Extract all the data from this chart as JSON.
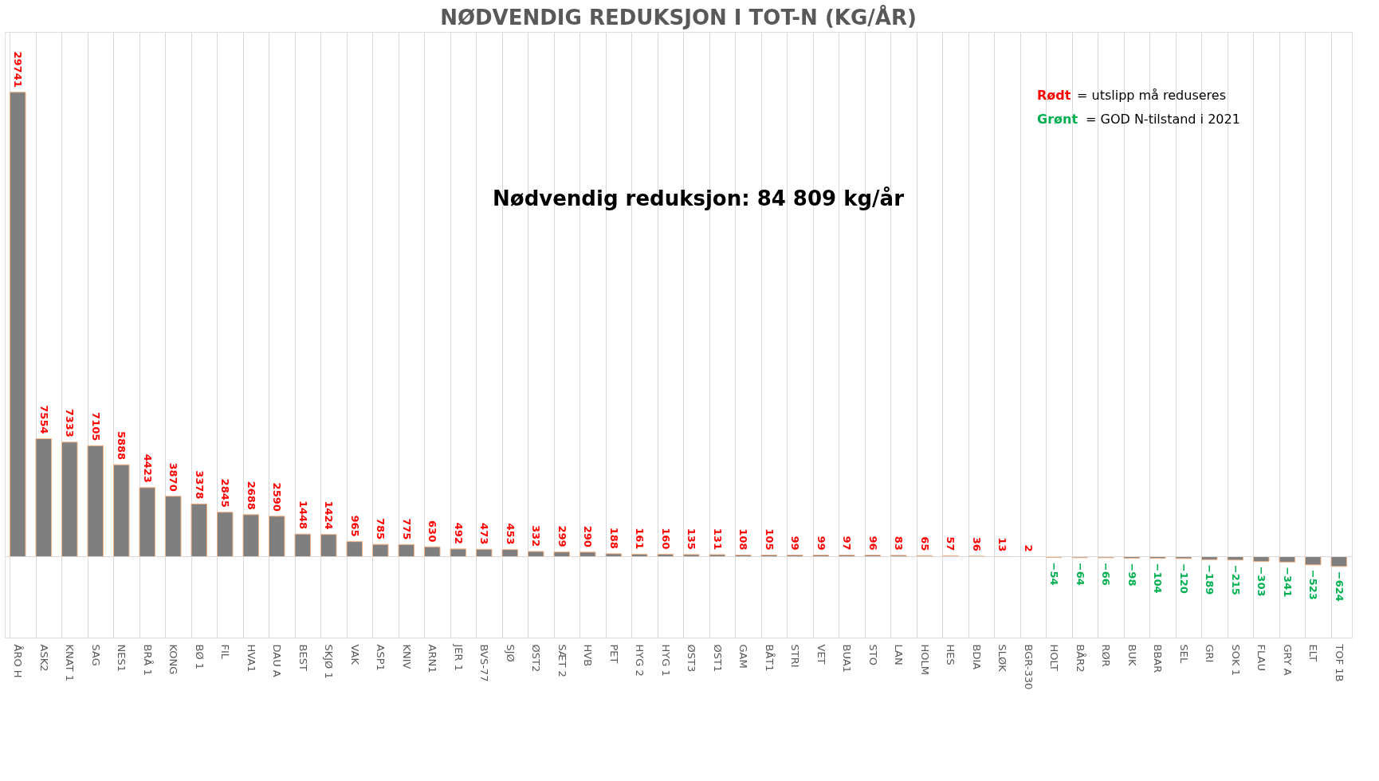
{
  "chart_data": {
    "type": "bar",
    "title": "NØDVENDIG REDUKSJON I TOT-N (KG/ÅR)",
    "categories": [
      "ÅRO H",
      "ASK2",
      "KNAT 1",
      "SAG",
      "NES1",
      "BRÅ 1",
      "KONG",
      "BØ 1",
      "FIL",
      "HVA1",
      "DAU A",
      "BEST",
      "SKJØ 1",
      "VAK",
      "ASP1",
      "KNIV",
      "ARN1",
      "JER 1",
      "BVS-77",
      "SJØ",
      "ØST2",
      "SÆT 2",
      "HVB",
      "PET",
      "HYG 2",
      "HYG 1",
      "ØST3",
      "ØST1",
      "GAM",
      "BÅT1",
      "STRI",
      "VET",
      "BUA1",
      "STO",
      "LAN",
      "HOLM",
      "HES",
      "BDIA",
      "SLØK",
      "BGR-330",
      "HOLT",
      "BÅR2",
      "RØR",
      "BUK",
      "BBAR",
      "SEL",
      "GRI",
      "SOK 1",
      "FLAU",
      "GRY A",
      "ELT",
      "TOF 1B"
    ],
    "series": [
      {
        "color": "#7f7f7f",
        "values": [
          29741,
          7554,
          7333,
          7105,
          5888,
          4423,
          3870,
          3378,
          2845,
          2688,
          2590,
          1448,
          1424,
          965,
          785,
          775,
          630,
          492,
          473,
          453,
          332,
          299,
          290,
          188,
          161,
          160,
          135,
          131,
          108,
          105,
          99,
          99,
          97,
          96,
          83,
          65,
          57,
          36,
          13,
          2,
          -54,
          -64,
          -66,
          -98,
          -104,
          -120,
          -189,
          -215,
          -303,
          -341,
          -523,
          -624
        ]
      }
    ],
    "data_labels": true,
    "grid": "x",
    "annotations": [
      "Rødt = utslipp må reduseres",
      "Grønt = GOD N-tilstand i 2021",
      "Nødvendig reduksjon: 84 809 kg/år"
    ]
  }
}
